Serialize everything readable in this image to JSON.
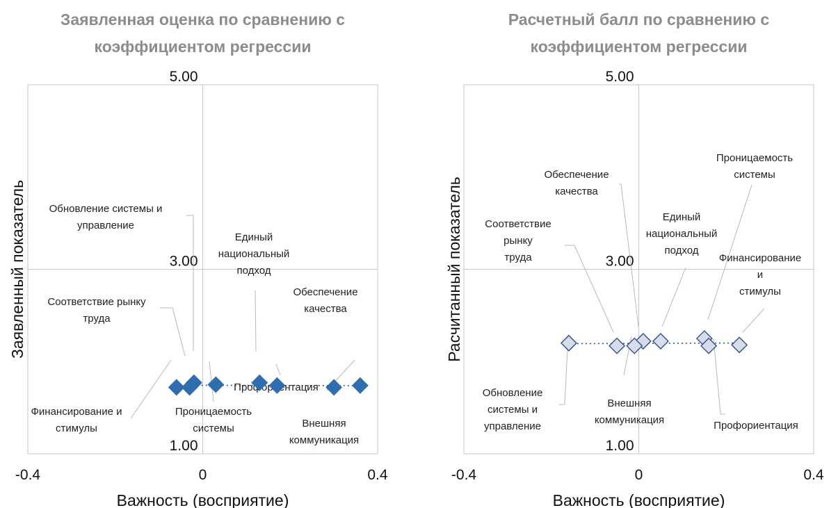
{
  "chart_data": [
    {
      "type": "scatter",
      "title_lines": [
        "Заявленная оценка по сравнению с",
        "коэффициентом регрессии"
      ],
      "xlabel": "Важность (восприятие)",
      "ylabel": "Заявленный показатель",
      "xlim": [
        -0.4,
        0.4
      ],
      "ylim": [
        1.0,
        5.0
      ],
      "x_ticks": [
        "-0.4",
        "0",
        "0.4"
      ],
      "y_ticks": [
        "1.00",
        "3.00",
        "5.00"
      ],
      "grid": false,
      "marker": {
        "fill": "#2e6db0",
        "stroke": "#2e6db0"
      },
      "trendline": "dotted",
      "points": [
        {
          "label_lines": [
            "Обновление системы и",
            "управление"
          ],
          "x": -0.02,
          "y": 1.77
        },
        {
          "label_lines": [
            "Единый",
            "национальный",
            "подход"
          ],
          "x": 0.13,
          "y": 1.77
        },
        {
          "label_lines": [
            "Обеспечение",
            "качества"
          ],
          "x": 0.3,
          "y": 1.72
        },
        {
          "label_lines": [
            "Соответствие рынку",
            "труда"
          ],
          "x": -0.03,
          "y": 1.72
        },
        {
          "label_lines": [
            "Профориентация"
          ],
          "x": 0.17,
          "y": 1.74
        },
        {
          "label_lines": [
            "Финансирование и",
            "стимулы"
          ],
          "x": -0.06,
          "y": 1.72
        },
        {
          "label_lines": [
            "Проницаемость",
            "системы"
          ],
          "x": 0.03,
          "y": 1.75
        },
        {
          "label_lines": [
            "Внешняя",
            "коммуникация"
          ],
          "x": 0.36,
          "y": 1.74
        }
      ]
    },
    {
      "type": "scatter",
      "title_lines": [
        "Расчетный балл по сравнению с",
        "коэффициентом регрессии"
      ],
      "xlabel": "Важность (восприятие)",
      "ylabel": "Расчитанный показатель",
      "xlim": [
        -0.4,
        0.4
      ],
      "ylim": [
        1.0,
        5.0
      ],
      "x_ticks": [
        "-0.4",
        "0",
        "0.4"
      ],
      "y_ticks": [
        "1.00",
        "3.00",
        "5.00"
      ],
      "grid": false,
      "marker": {
        "fill": "#d6dce8",
        "stroke": "#2f4f8a"
      },
      "trendline": "dotted",
      "points": [
        {
          "label_lines": [
            "Обеспечение",
            "качества"
          ],
          "x": 0.01,
          "y": 2.22
        },
        {
          "label_lines": [
            "Проницаемость",
            "системы"
          ],
          "x": 0.15,
          "y": 2.25
        },
        {
          "label_lines": [
            "Соответствие",
            "рынку",
            "труда"
          ],
          "x": -0.05,
          "y": 2.17
        },
        {
          "label_lines": [
            "Единый",
            "национальный",
            "подход"
          ],
          "x": 0.05,
          "y": 2.22
        },
        {
          "label_lines": [
            "Финансирование",
            "и",
            "стимулы"
          ],
          "x": 0.23,
          "y": 2.18
        },
        {
          "label_lines": [
            "Обновление",
            "системы и",
            "управление"
          ],
          "x": -0.16,
          "y": 2.2
        },
        {
          "label_lines": [
            "Внешняя",
            "коммуникация"
          ],
          "x": -0.01,
          "y": 2.17
        },
        {
          "label_lines": [
            "Профориентация"
          ],
          "x": 0.16,
          "y": 2.17
        }
      ]
    }
  ]
}
